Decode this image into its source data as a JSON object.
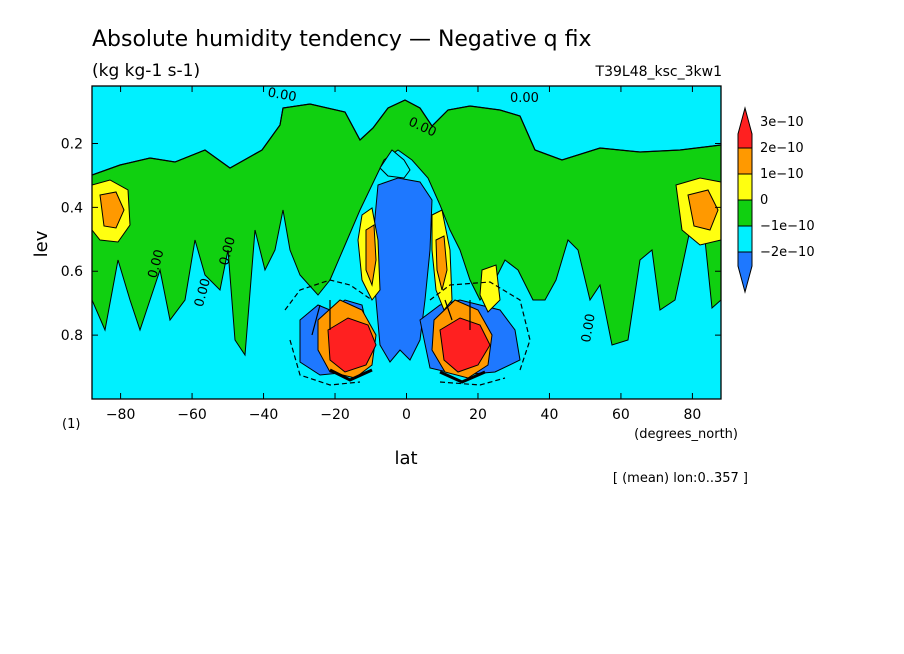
{
  "chart_data": {
    "type": "heatmap",
    "title": "Absolute humidity tendency — Negative q fix",
    "units": "(kg kg-1 s-1)",
    "run_id": "T39L48_ksc_3kw1",
    "xlabel": "lat",
    "x_units": "(degrees_north)",
    "ylabel": "lev",
    "y_units": "(1)",
    "note": "[ (mean) lon:0..357 ]",
    "xlim": [
      -88,
      88
    ],
    "ylim": [
      1.0,
      0.02
    ],
    "y_reversed": true,
    "x_ticks": [
      -80,
      -60,
      -40,
      -20,
      0,
      20,
      40,
      60,
      80
    ],
    "x_tick_labels": [
      "−80",
      "−60",
      "−40",
      "−20",
      "0",
      "20",
      "40",
      "60",
      "80"
    ],
    "y_ticks": [
      0.2,
      0.4,
      0.6,
      0.8
    ],
    "y_tick_labels": [
      "0.2",
      "0.4",
      "0.6",
      "0.8"
    ],
    "colorbar": {
      "levels": [
        -2e-10,
        -1e-10,
        0,
        1e-10,
        2e-10,
        3e-10
      ],
      "labels": [
        "−2e−10",
        "−1e−10",
        "0",
        "1e−10",
        "2e−10",
        "3e−10"
      ],
      "colors": [
        "#1e78ff",
        "#00f0ff",
        "#10d010",
        "#ffff10",
        "#ff9900",
        "#ff2020"
      ]
    },
    "contour_label": "0.00",
    "contour_label_marks": [
      {
        "x": -35,
        "y": 0.06,
        "rot": 10
      },
      {
        "x": 33,
        "y": 0.07,
        "rot": 0
      },
      {
        "x": 4,
        "y": 0.16,
        "rot": 25
      },
      {
        "x": -69,
        "y": 0.58,
        "rot": -75
      },
      {
        "x": -56,
        "y": 0.67,
        "rot": -75
      },
      {
        "x": -49,
        "y": 0.54,
        "rot": -75
      },
      {
        "x": 52,
        "y": 0.78,
        "rot": -80
      }
    ],
    "levels_note": "contour lines every 1e-10; dashed lines negative"
  },
  "colors": {
    "background": "#00f0ff",
    "frame": "#000000"
  }
}
